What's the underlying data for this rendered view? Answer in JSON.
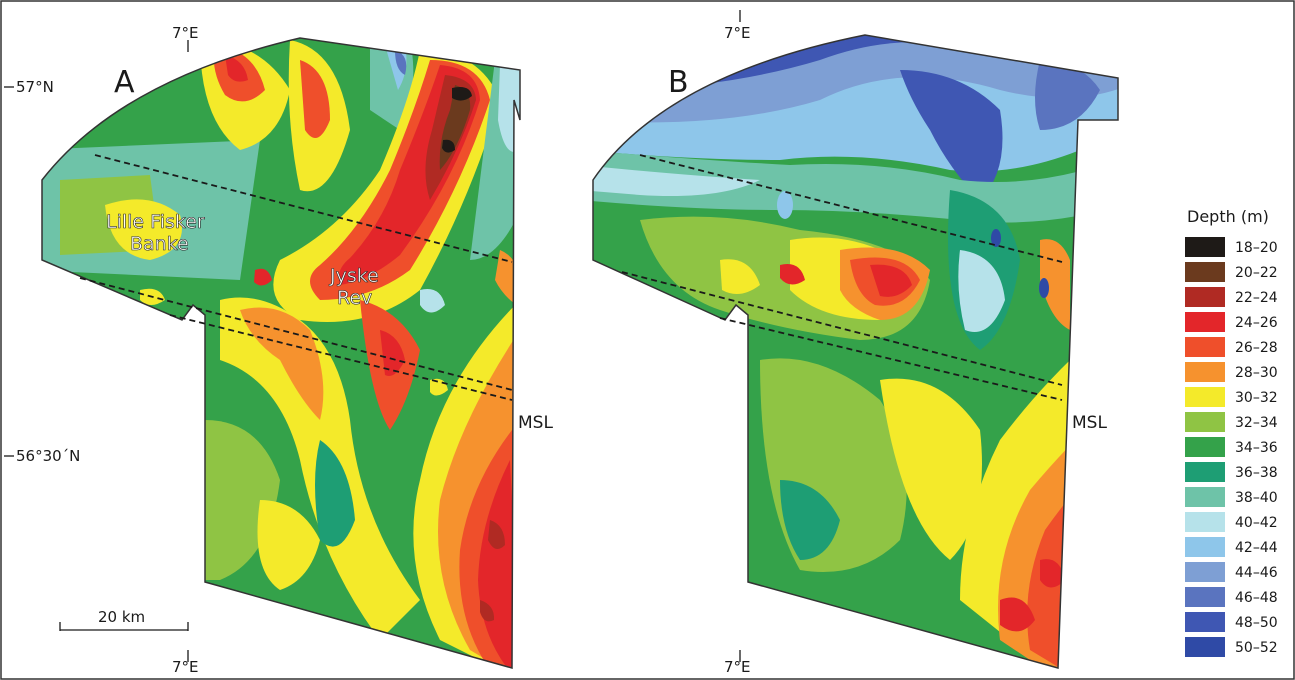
{
  "coords": {
    "lon_7e": "7°E",
    "lat_57n": "57°N",
    "lat_5630n": "56°30´N"
  },
  "panels": [
    {
      "letter": "A",
      "msl_label": "MSL"
    },
    {
      "letter": "B",
      "msl_label": "MSL"
    }
  ],
  "place_labels": {
    "lille_fisker_banke": [
      "Lille Fisker",
      "Banke"
    ],
    "jyske_rev": [
      "Jyske",
      "Rev"
    ]
  },
  "scale_bar": {
    "label": "20 km"
  },
  "legend": {
    "title": "Depth (m)",
    "items": [
      {
        "label": "18–20",
        "color": "#1e1a17"
      },
      {
        "label": "20–22",
        "color": "#6b3a1e"
      },
      {
        "label": "22–24",
        "color": "#b02a23"
      },
      {
        "label": "24–26",
        "color": "#e3262a"
      },
      {
        "label": "26–28",
        "color": "#ef4f2b"
      },
      {
        "label": "28–30",
        "color": "#f6922e"
      },
      {
        "label": "30–32",
        "color": "#f4ea2a"
      },
      {
        "label": "32–34",
        "color": "#8fc444"
      },
      {
        "label": "34–36",
        "color": "#34a24a"
      },
      {
        "label": "36–38",
        "color": "#1e9e74"
      },
      {
        "label": "38–40",
        "color": "#6ec3a8"
      },
      {
        "label": "40–42",
        "color": "#b6e2ea"
      },
      {
        "label": "42–44",
        "color": "#8ec6ea"
      },
      {
        "label": "44–46",
        "color": "#7e9fd4"
      },
      {
        "label": "46–48",
        "color": "#5a74bf"
      },
      {
        "label": "48–50",
        "color": "#3f57b3"
      },
      {
        "label": "50–52",
        "color": "#2f4aa6"
      }
    ]
  },
  "colors": {
    "ink": "#1a1a1a",
    "frame": "#333333"
  }
}
